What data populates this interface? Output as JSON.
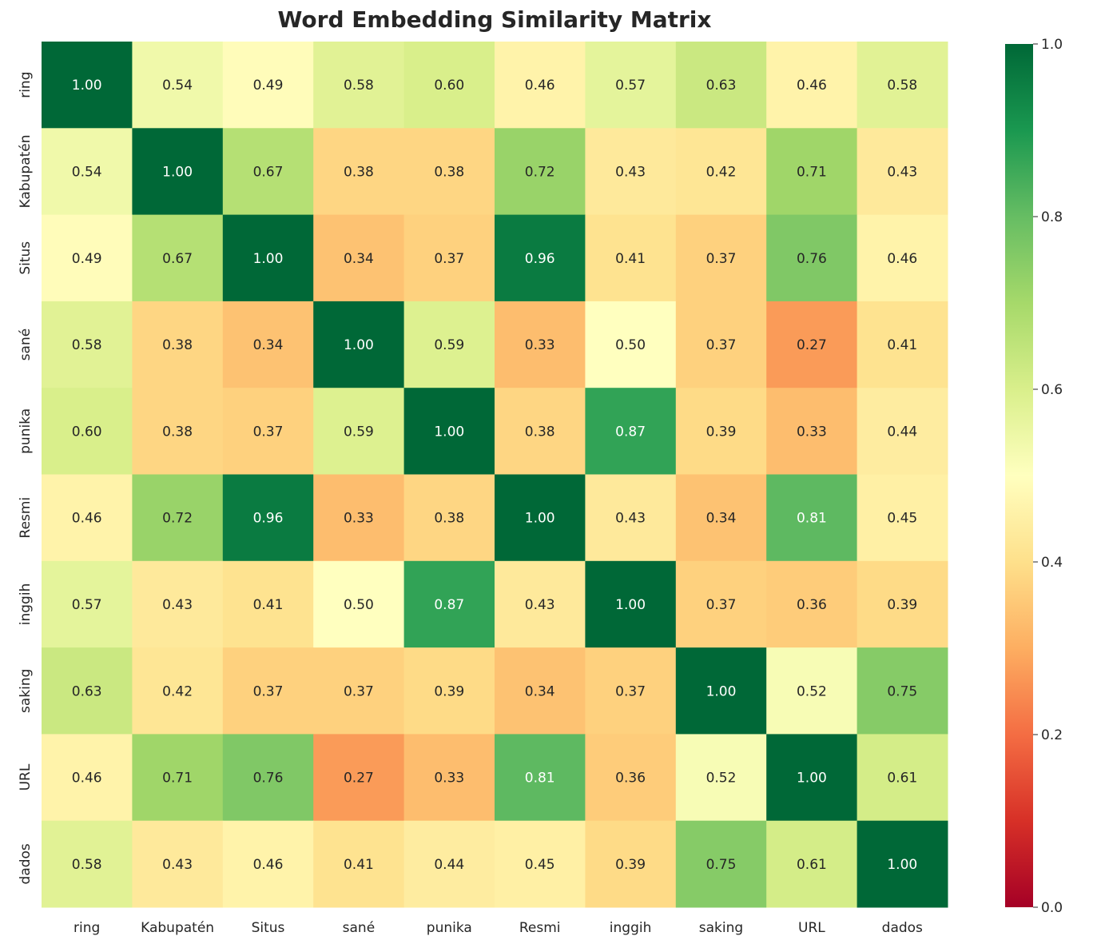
{
  "chart_data": {
    "type": "heatmap",
    "title": "Word Embedding Similarity Matrix",
    "x_labels": [
      "ring",
      "Kabupatén",
      "Situs",
      "sané",
      "punika",
      "Resmi",
      "inggih",
      "saking",
      "URL",
      "dados"
    ],
    "y_labels": [
      "ring",
      "Kabupatén",
      "Situs",
      "sané",
      "punika",
      "Resmi",
      "inggih",
      "saking",
      "URL",
      "dados"
    ],
    "values": [
      [
        1.0,
        0.54,
        0.49,
        0.58,
        0.6,
        0.46,
        0.57,
        0.63,
        0.46,
        0.58
      ],
      [
        0.54,
        1.0,
        0.67,
        0.38,
        0.38,
        0.72,
        0.43,
        0.42,
        0.71,
        0.43
      ],
      [
        0.49,
        0.67,
        1.0,
        0.34,
        0.37,
        0.96,
        0.41,
        0.37,
        0.76,
        0.46
      ],
      [
        0.58,
        0.38,
        0.34,
        1.0,
        0.59,
        0.33,
        0.5,
        0.37,
        0.27,
        0.41
      ],
      [
        0.6,
        0.38,
        0.37,
        0.59,
        1.0,
        0.38,
        0.87,
        0.39,
        0.33,
        0.44
      ],
      [
        0.46,
        0.72,
        0.96,
        0.33,
        0.38,
        1.0,
        0.43,
        0.34,
        0.81,
        0.45
      ],
      [
        0.57,
        0.43,
        0.41,
        0.5,
        0.87,
        0.43,
        1.0,
        0.37,
        0.36,
        0.39
      ],
      [
        0.63,
        0.42,
        0.37,
        0.37,
        0.39,
        0.34,
        0.37,
        1.0,
        0.52,
        0.75
      ],
      [
        0.46,
        0.71,
        0.76,
        0.27,
        0.33,
        0.81,
        0.36,
        0.52,
        1.0,
        0.61
      ],
      [
        0.58,
        0.43,
        0.46,
        0.41,
        0.44,
        0.45,
        0.39,
        0.75,
        0.61,
        1.0
      ]
    ],
    "colormap": "RdYlGn",
    "vmin": 0.0,
    "vmax": 1.0,
    "colorbar_ticks": [
      "0.0",
      "0.2",
      "0.4",
      "0.6",
      "0.8",
      "1.0"
    ],
    "annotation_format": "0.00",
    "grid": false
  }
}
